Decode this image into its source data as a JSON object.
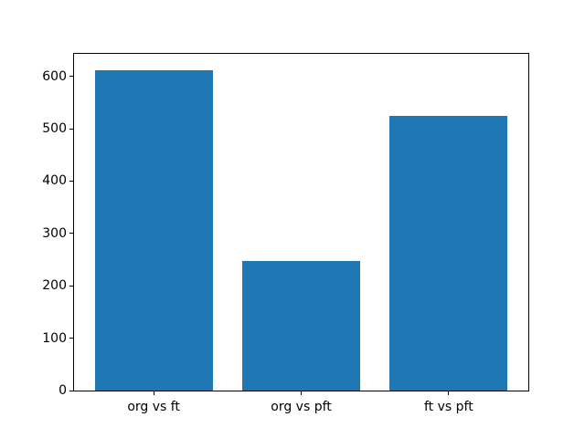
{
  "chart_data": {
    "type": "bar",
    "categories": [
      "org vs ft",
      "org vs pft",
      "ft vs pft"
    ],
    "values": [
      612,
      248,
      524
    ],
    "title": "",
    "xlabel": "",
    "ylabel": "",
    "ylim": [
      0,
      643
    ],
    "yticks": [
      0,
      100,
      200,
      300,
      400,
      500,
      600
    ],
    "bar_color": "#1f77b4",
    "bar_width_fraction": 0.8,
    "grid": "off",
    "legend": "none",
    "axis_color": "#000000",
    "background_color": "#ffffff"
  }
}
